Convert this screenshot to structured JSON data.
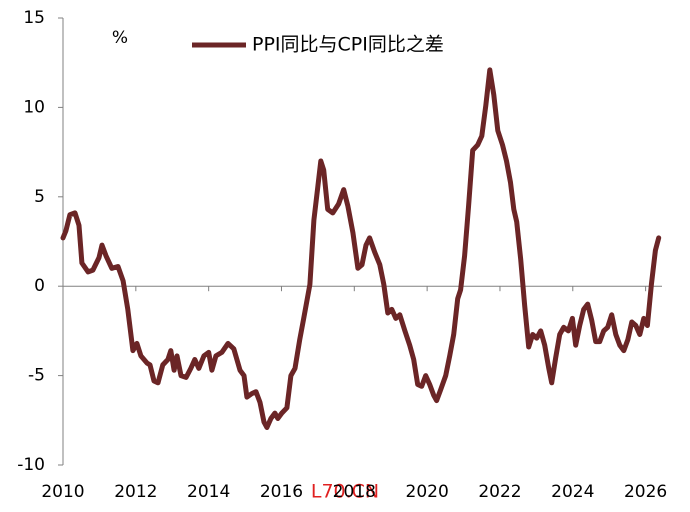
{
  "chart_data": {
    "type": "line",
    "ylabel": "%",
    "series": [
      {
        "name": "PPI同比与CPI同比之差",
        "color": "#6b2526",
        "x": [
          2010.0,
          2010.08,
          2010.19,
          2010.33,
          2010.44,
          2010.52,
          2010.69,
          2010.82,
          2010.99,
          2011.07,
          2011.18,
          2011.34,
          2011.51,
          2011.65,
          2011.78,
          2011.92,
          2012.03,
          2012.14,
          2012.31,
          2012.39,
          2012.5,
          2012.61,
          2012.74,
          2012.88,
          2012.96,
          2013.05,
          2013.13,
          2013.24,
          2013.38,
          2013.51,
          2013.62,
          2013.73,
          2013.87,
          2014.0,
          2014.09,
          2014.2,
          2014.36,
          2014.53,
          2014.69,
          2014.86,
          2014.97,
          2015.05,
          2015.19,
          2015.3,
          2015.41,
          2015.52,
          2015.6,
          2015.71,
          2015.82,
          2015.9,
          2016.01,
          2016.15,
          2016.26,
          2016.37,
          2016.5,
          2016.61,
          2016.78,
          2016.89,
          2017.0,
          2017.08,
          2017.16,
          2017.27,
          2017.41,
          2017.57,
          2017.71,
          2017.82,
          2017.96,
          2018.1,
          2018.21,
          2018.32,
          2018.42,
          2018.56,
          2018.7,
          2018.81,
          2018.92,
          2019.03,
          2019.14,
          2019.25,
          2019.39,
          2019.52,
          2019.63,
          2019.74,
          2019.85,
          2019.96,
          2020.07,
          2020.18,
          2020.26,
          2020.37,
          2020.51,
          2020.62,
          2020.73,
          2020.84,
          2020.92,
          2021.03,
          2021.14,
          2021.25,
          2021.39,
          2021.5,
          2021.61,
          2021.72,
          2021.83,
          2021.94,
          2022.07,
          2022.18,
          2022.29,
          2022.38,
          2022.46,
          2022.57,
          2022.68,
          2022.79,
          2022.9,
          2023.01,
          2023.12,
          2023.23,
          2023.34,
          2023.42,
          2023.53,
          2023.64,
          2023.75,
          2023.88,
          2023.99,
          2024.08,
          2024.19,
          2024.3,
          2024.41,
          2024.52,
          2024.63,
          2024.74,
          2024.85,
          2024.96,
          2025.07,
          2025.18,
          2025.29,
          2025.4,
          2025.51,
          2025.62,
          2025.73,
          2025.84,
          2025.95,
          2026.05,
          2026.16,
          2026.27,
          2026.36
        ],
        "values": [
          2.7,
          3.1,
          4.0,
          4.1,
          3.4,
          1.3,
          0.8,
          0.9,
          1.6,
          2.3,
          1.7,
          1.0,
          1.1,
          0.3,
          -1.3,
          -3.6,
          -3.2,
          -3.9,
          -4.3,
          -4.4,
          -5.3,
          -5.4,
          -4.4,
          -4.1,
          -3.6,
          -4.7,
          -3.9,
          -5.0,
          -5.1,
          -4.6,
          -4.1,
          -4.6,
          -3.9,
          -3.7,
          -4.7,
          -3.9,
          -3.7,
          -3.2,
          -3.5,
          -4.7,
          -5.0,
          -6.2,
          -6.0,
          -5.9,
          -6.5,
          -7.6,
          -7.9,
          -7.4,
          -7.1,
          -7.4,
          -7.1,
          -6.8,
          -5.0,
          -4.6,
          -3.0,
          -1.8,
          0.1,
          3.7,
          5.6,
          7.0,
          6.5,
          4.3,
          4.1,
          4.6,
          5.4,
          4.5,
          3.0,
          1.0,
          1.2,
          2.3,
          2.7,
          1.9,
          1.2,
          0.1,
          -1.5,
          -1.3,
          -1.8,
          -1.6,
          -2.5,
          -3.3,
          -4.1,
          -5.5,
          -5.6,
          -5.0,
          -5.5,
          -6.1,
          -6.4,
          -5.8,
          -5.0,
          -3.9,
          -2.7,
          -0.7,
          -0.2,
          1.7,
          4.5,
          7.6,
          7.9,
          8.4,
          10.1,
          12.1,
          10.7,
          8.7,
          7.9,
          7.0,
          5.8,
          4.3,
          3.6,
          1.5,
          -1.1,
          -3.4,
          -2.7,
          -2.9,
          -2.5,
          -3.3,
          -4.6,
          -5.4,
          -4.0,
          -2.7,
          -2.3,
          -2.5,
          -1.8,
          -3.3,
          -2.2,
          -1.3,
          -1.0,
          -1.9,
          -3.1,
          -3.1,
          -2.5,
          -2.3,
          -1.6,
          -2.7,
          -3.3,
          -3.6,
          -3.0,
          -2.0,
          -2.2,
          -2.7,
          -1.8,
          -2.2,
          0.1,
          2.0,
          2.7
        ]
      }
    ],
    "xlim": [
      2010,
      2026.45
    ],
    "xticks": [
      2010,
      2012,
      2014,
      2016,
      2018,
      2020,
      2022,
      2024,
      2026
    ],
    "ylim": [
      -10,
      15
    ],
    "yticks": [
      -10,
      -5,
      0,
      5,
      10,
      15
    ],
    "legend": "top"
  },
  "watermark": "L70.CN"
}
